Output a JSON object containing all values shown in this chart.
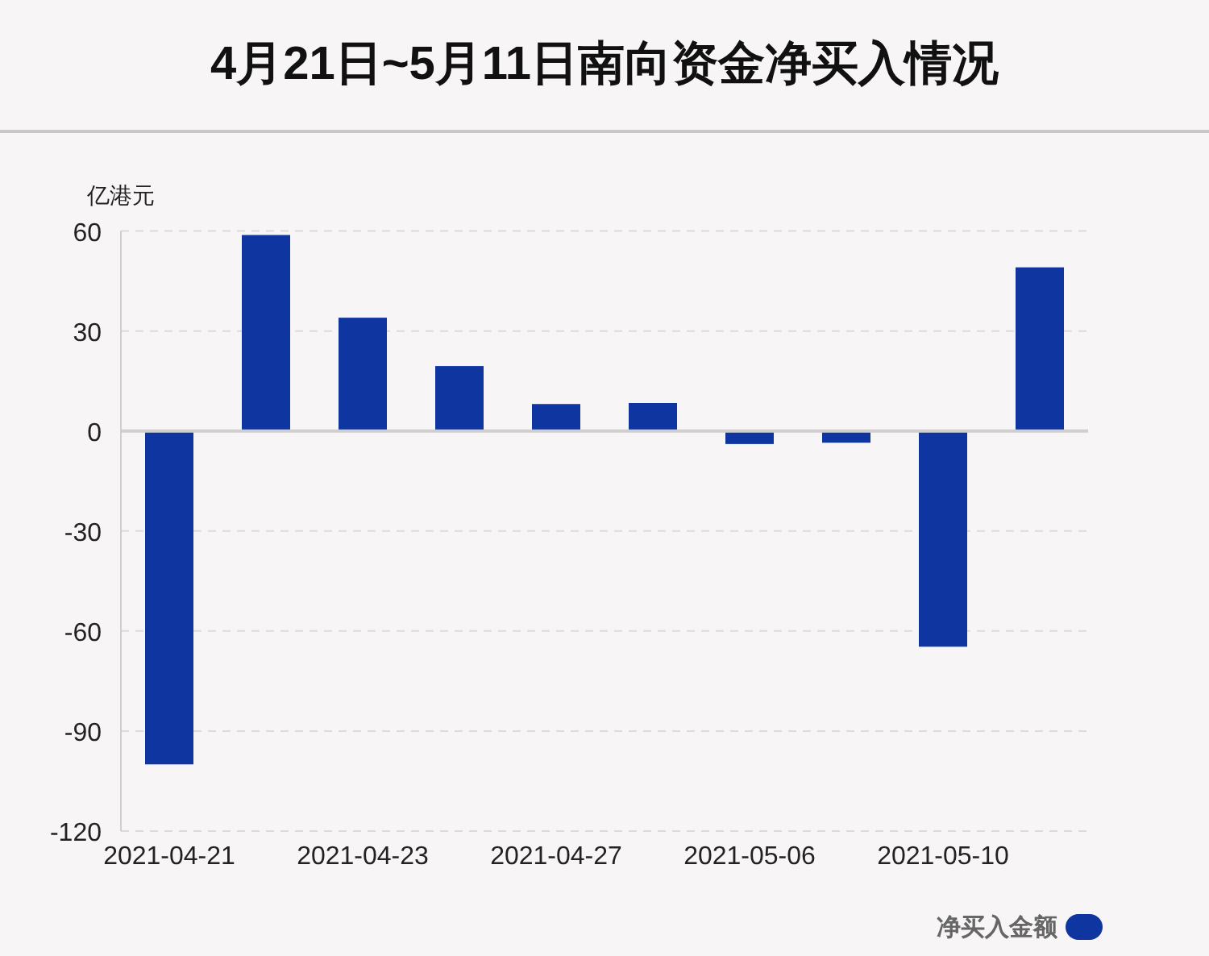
{
  "chart_data": {
    "type": "bar",
    "title": "4月21日~5月11日南向资金净买入情况",
    "ylabel": "亿港元",
    "categories": [
      "2021-04-21",
      null,
      "2021-04-23",
      null,
      "2021-04-27",
      null,
      "2021-05-06",
      null,
      "2021-05-10",
      null
    ],
    "series": [
      {
        "name": "净买入金额",
        "color": "#0e35a0",
        "values": [
          -100,
          58.8,
          34,
          19.5,
          8.1,
          8.4,
          -3.9,
          -3.5,
          -64.7,
          49.1
        ]
      }
    ],
    "ylim": [
      -120,
      60
    ],
    "yticks": [
      -120,
      -90,
      -60,
      -30,
      0,
      30,
      60
    ],
    "grid": "y",
    "legend": "bottom right"
  }
}
